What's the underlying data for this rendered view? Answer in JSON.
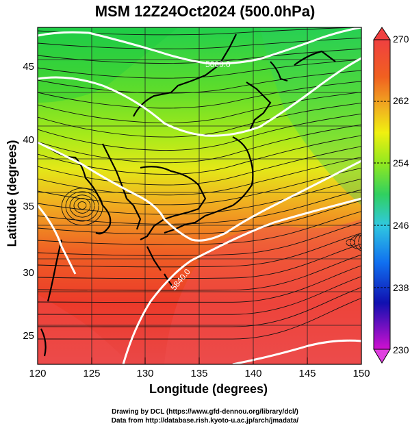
{
  "title": "MSM 12Z24Oct2024 (500.0hPa)",
  "xlabel": "Longitude (degrees)",
  "ylabel": "Latitude  (degrees)",
  "x_ticks": [
    "120",
    "125",
    "130",
    "135",
    "140",
    "145",
    "150"
  ],
  "y_ticks": [
    "25",
    "30",
    "35",
    "40",
    "45"
  ],
  "colorbar": {
    "min": 230,
    "max": 270,
    "labels": [
      "270",
      "262",
      "254",
      "246",
      "238",
      "230"
    ],
    "colors": [
      "#d010d0",
      "#1010b0",
      "#1060f0",
      "#30c8f0",
      "#30e060",
      "#a0f010",
      "#f0f010",
      "#f0a020",
      "#f04020",
      "#f04040"
    ]
  },
  "contour_labels": [
    "5600.0",
    "5840.0"
  ],
  "credits": {
    "line1": "Drawing by DCL (https://www.gfd-dennou.org/library/dcl/)",
    "line2": "Data from http://database.rish.kyoto-u.ac.jp/arch/jmadata/"
  },
  "chart_data": {
    "type": "map",
    "variable": "temperature shaded with streamlines and geopotential height contours",
    "lon_range": [
      120,
      150
    ],
    "lat_range": [
      22.5,
      47.8
    ],
    "colorbar_range": [
      230,
      270
    ],
    "contour_levels": [
      5600.0,
      5840.0
    ]
  }
}
